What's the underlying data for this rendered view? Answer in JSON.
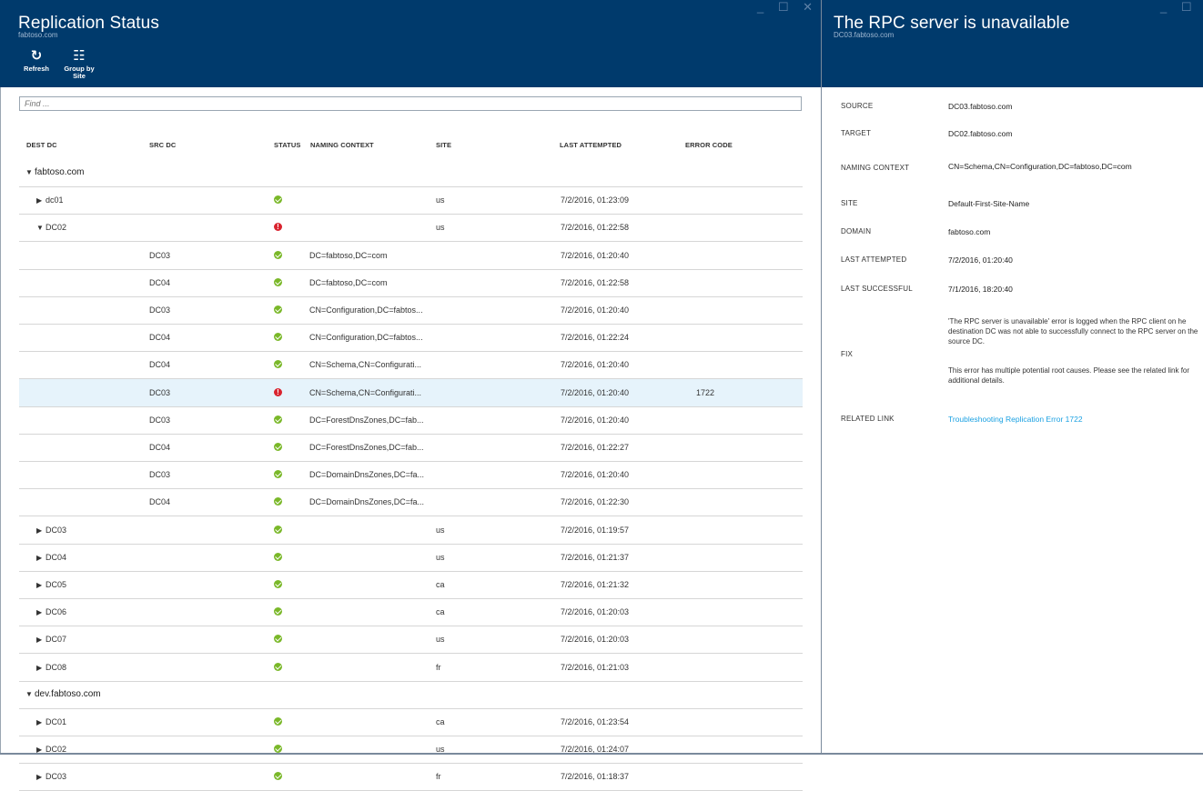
{
  "left": {
    "title": "Replication Status",
    "subtitle": "fabtoso.com",
    "window_controls": "_ ☐ ✕",
    "toolbar": {
      "refresh_label": "Refresh",
      "group_label_1": "Group by",
      "group_label_2": "Site"
    },
    "search": {
      "placeholder": "Find ..."
    },
    "columns": {
      "dest_dc": "DEST DC",
      "src_dc": "SRC DC",
      "status": "STATUS",
      "naming_context": "NAMING CONTEXT",
      "site": "SITE",
      "last_attempted": "LAST ATTEMPTED",
      "error_code": "ERROR CODE"
    },
    "rows": [
      {
        "kind": "group",
        "expanded": true,
        "dest": "fabtoso.com"
      },
      {
        "kind": "dc",
        "expanded": false,
        "dest": "dc01",
        "status": "ok",
        "site": "us",
        "last": "7/2/2016, 01:23:09"
      },
      {
        "kind": "dc",
        "expanded": true,
        "dest": "DC02",
        "status": "err",
        "site": "us",
        "last": "7/2/2016, 01:22:58"
      },
      {
        "kind": "link",
        "src": "DC03",
        "status": "ok",
        "nc": "DC=fabtoso,DC=com",
        "last": "7/2/2016, 01:20:40"
      },
      {
        "kind": "link",
        "src": "DC04",
        "status": "ok",
        "nc": "DC=fabtoso,DC=com",
        "last": "7/2/2016, 01:22:58"
      },
      {
        "kind": "link",
        "src": "DC03",
        "status": "ok",
        "nc": "CN=Configuration,DC=fabtos...",
        "last": "7/2/2016, 01:20:40"
      },
      {
        "kind": "link",
        "src": "DC04",
        "status": "ok",
        "nc": "CN=Configuration,DC=fabtos...",
        "last": "7/2/2016, 01:22:24"
      },
      {
        "kind": "link",
        "src": "DC04",
        "status": "ok",
        "nc": "CN=Schema,CN=Configurati...",
        "last": "7/2/2016, 01:20:40"
      },
      {
        "kind": "link",
        "src": "DC03",
        "status": "err",
        "nc": "CN=Schema,CN=Configurati...",
        "last": "7/2/2016, 01:20:40",
        "error": "1722",
        "selected": true
      },
      {
        "kind": "link",
        "src": "DC03",
        "status": "ok",
        "nc": "DC=ForestDnsZones,DC=fab...",
        "last": "7/2/2016, 01:20:40"
      },
      {
        "kind": "link",
        "src": "DC04",
        "status": "ok",
        "nc": "DC=ForestDnsZones,DC=fab...",
        "last": "7/2/2016, 01:22:27"
      },
      {
        "kind": "link",
        "src": "DC03",
        "status": "ok",
        "nc": "DC=DomainDnsZones,DC=fa...",
        "last": "7/2/2016, 01:20:40"
      },
      {
        "kind": "link",
        "src": "DC04",
        "status": "ok",
        "nc": "DC=DomainDnsZones,DC=fa...",
        "last": "7/2/2016, 01:22:30"
      },
      {
        "kind": "dc",
        "expanded": false,
        "dest": "DC03",
        "status": "ok",
        "site": "us",
        "last": "7/2/2016, 01:19:57"
      },
      {
        "kind": "dc",
        "expanded": false,
        "dest": "DC04",
        "status": "ok",
        "site": "us",
        "last": "7/2/2016, 01:21:37"
      },
      {
        "kind": "dc",
        "expanded": false,
        "dest": "DC05",
        "status": "ok",
        "site": "ca",
        "last": "7/2/2016, 01:21:32"
      },
      {
        "kind": "dc",
        "expanded": false,
        "dest": "DC06",
        "status": "ok",
        "site": "ca",
        "last": "7/2/2016, 01:20:03"
      },
      {
        "kind": "dc",
        "expanded": false,
        "dest": "DC07",
        "status": "ok",
        "site": "us",
        "last": "7/2/2016, 01:20:03"
      },
      {
        "kind": "dc",
        "expanded": false,
        "dest": "DC08",
        "status": "ok",
        "site": "fr",
        "last": "7/2/2016, 01:21:03"
      },
      {
        "kind": "group",
        "expanded": true,
        "dest": "dev.fabtoso.com"
      },
      {
        "kind": "dc",
        "expanded": false,
        "dest": "DC01",
        "status": "ok",
        "site": "ca",
        "last": "7/2/2016, 01:23:54"
      },
      {
        "kind": "dc",
        "expanded": false,
        "dest": "DC02",
        "status": "ok",
        "site": "us",
        "last": "7/2/2016, 01:24:07"
      },
      {
        "kind": "dc",
        "expanded": false,
        "dest": "DC03",
        "status": "ok",
        "site": "fr",
        "last": "7/2/2016, 01:18:37"
      }
    ]
  },
  "right": {
    "title": "The RPC server is unavailable",
    "subtitle": "DC03.fabtoso.com",
    "window_controls": "_ ☐",
    "fields": {
      "source_label": "SOURCE",
      "source_value": "DC03.fabtoso.com",
      "target_label": "TARGET",
      "target_value": "DC02.fabtoso.com",
      "nc_label": "NAMING CONTEXT",
      "nc_value": "CN=Schema,CN=Configuration,DC=fabtoso,DC=com",
      "site_label": "SITE",
      "site_value": "Default-First-Site-Name",
      "domain_label": "DOMAIN",
      "domain_value": "fabtoso.com",
      "last_attempted_label": "LAST ATTEMPTED",
      "last_attempted_value": "7/2/2016, 01:20:40",
      "last_successful_label": "LAST SUCCESSFUL",
      "last_successful_value": "7/1/2016, 18:20:40",
      "fix_label": "FIX",
      "fix_p1": "'The RPC server is unavailable' error is logged when the RPC client on he destination DC was not able to successfully connect to the RPC server on the source DC.",
      "fix_p2": "This error has multiple potential root causes. Please see the related link for additional details.",
      "related_label": "RELATED LINK",
      "related_value": "Troubleshooting Replication Error 1722"
    }
  },
  "colors": {
    "header": "#003a6c",
    "ok": "#7ab829",
    "error": "#d9232e",
    "selected_row": "#e6f3fb",
    "link": "#1ba1e2"
  }
}
